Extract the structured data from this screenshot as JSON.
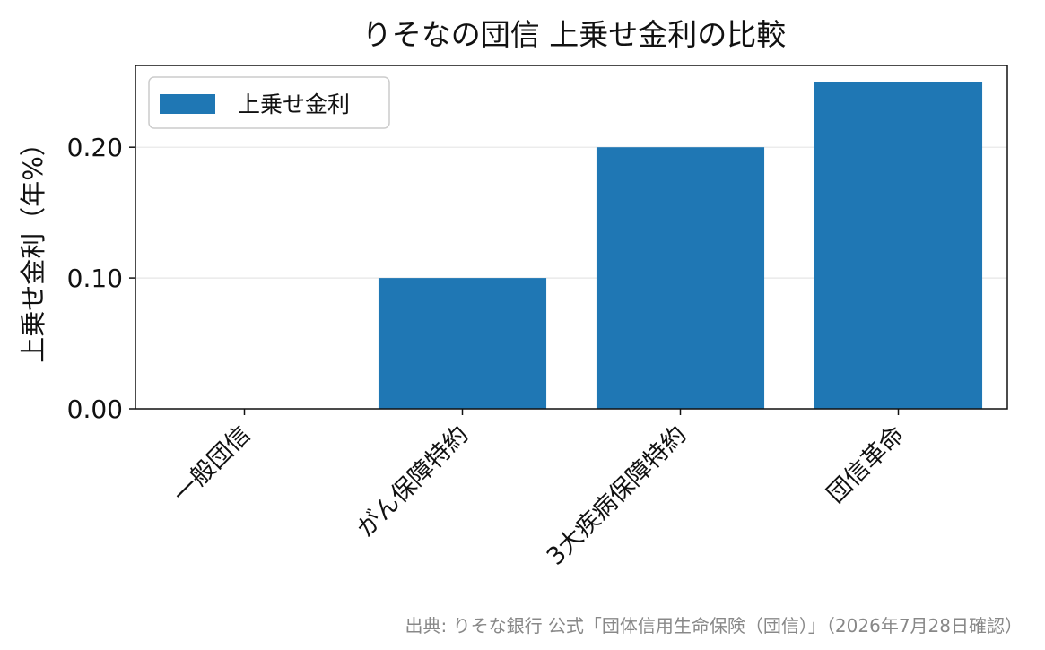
{
  "chart_data": {
    "type": "bar",
    "title": "りそなの団信 上乗せ金利の比較",
    "xlabel": "",
    "ylabel": "上乗せ金利（年%）",
    "categories": [
      "一般団信",
      "がん保障特約",
      "3大疾病保障特約",
      "団信革命"
    ],
    "series": [
      {
        "name": "上乗せ金利",
        "values": [
          0.0,
          0.1,
          0.2,
          0.25
        ],
        "color": "#1f77b4"
      }
    ],
    "ylim": [
      0,
      0.2625
    ],
    "yticks": [
      "0.00",
      "0.10",
      "0.20"
    ],
    "ytick_values": [
      0.0,
      0.1,
      0.2
    ],
    "grid": "y",
    "legend_position": "top-left",
    "source": "出典: りそな銀行 公式「団体信用生命保険（団信）」（2026年7月28日確認）"
  }
}
